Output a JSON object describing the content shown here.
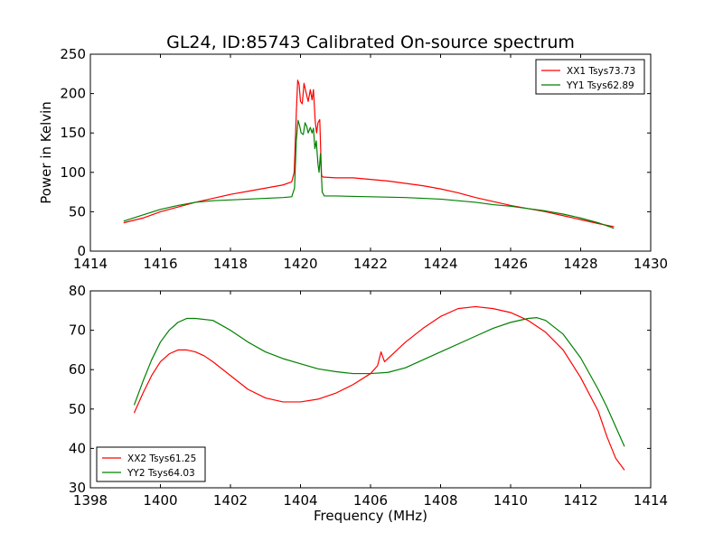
{
  "figure": {
    "title": "GL24, ID:85743 Calibrated On-source spectrum"
  },
  "chart_data": [
    {
      "type": "line",
      "title": "GL24, ID:85743 Calibrated On-source spectrum",
      "xlabel": "",
      "ylabel": "Power in Kelvin",
      "xlim": [
        1414,
        1430
      ],
      "ylim": [
        0,
        250
      ],
      "xticks": [
        1414,
        1416,
        1418,
        1420,
        1422,
        1424,
        1426,
        1428,
        1430
      ],
      "yticks": [
        0,
        50,
        100,
        150,
        200,
        250
      ],
      "legend": "top-right",
      "grid": false,
      "series": [
        {
          "name": "XX1 Tsys73.73",
          "color": "#ff0000",
          "points": [
            [
              1414.95,
              36
            ],
            [
              1415.5,
              42
            ],
            [
              1416,
              50
            ],
            [
              1416.5,
              56
            ],
            [
              1417,
              62
            ],
            [
              1417.5,
              67
            ],
            [
              1418,
              72
            ],
            [
              1418.5,
              76
            ],
            [
              1419,
              80
            ],
            [
              1419.5,
              84
            ],
            [
              1419.75,
              88
            ],
            [
              1419.82,
              100
            ],
            [
              1419.88,
              175
            ],
            [
              1419.92,
              217
            ],
            [
              1419.96,
              212
            ],
            [
              1420.0,
              190
            ],
            [
              1420.05,
              187
            ],
            [
              1420.1,
              213
            ],
            [
              1420.16,
              201
            ],
            [
              1420.22,
              190
            ],
            [
              1420.28,
              205
            ],
            [
              1420.33,
              192
            ],
            [
              1420.37,
              205
            ],
            [
              1420.42,
              165
            ],
            [
              1420.46,
              150
            ],
            [
              1420.5,
              163
            ],
            [
              1420.55,
              167
            ],
            [
              1420.6,
              96
            ],
            [
              1420.65,
              94
            ],
            [
              1421,
              93
            ],
            [
              1421.5,
              93
            ],
            [
              1422,
              91
            ],
            [
              1422.5,
              89
            ],
            [
              1423,
              86
            ],
            [
              1423.5,
              83
            ],
            [
              1424,
              79
            ],
            [
              1424.5,
              74
            ],
            [
              1425,
              68
            ],
            [
              1425.5,
              63
            ],
            [
              1426,
              58
            ],
            [
              1426.5,
              54
            ],
            [
              1427,
              50
            ],
            [
              1427.5,
              45
            ],
            [
              1428,
              40
            ],
            [
              1428.5,
              35
            ],
            [
              1428.95,
              31
            ]
          ]
        },
        {
          "name": "YY1 Tsys62.89",
          "color": "#008000",
          "points": [
            [
              1414.95,
              38
            ],
            [
              1415.5,
              46
            ],
            [
              1416,
              53
            ],
            [
              1416.5,
              58
            ],
            [
              1417,
              62
            ],
            [
              1417.5,
              64
            ],
            [
              1418,
              65
            ],
            [
              1418.5,
              66
            ],
            [
              1419,
              67
            ],
            [
              1419.5,
              68
            ],
            [
              1419.75,
              69
            ],
            [
              1419.83,
              80
            ],
            [
              1419.88,
              140
            ],
            [
              1419.93,
              166
            ],
            [
              1419.97,
              160
            ],
            [
              1420.02,
              150
            ],
            [
              1420.08,
              148
            ],
            [
              1420.13,
              163
            ],
            [
              1420.18,
              158
            ],
            [
              1420.22,
              150
            ],
            [
              1420.28,
              157
            ],
            [
              1420.33,
              150
            ],
            [
              1420.37,
              156
            ],
            [
              1420.41,
              130
            ],
            [
              1420.45,
              140
            ],
            [
              1420.5,
              110
            ],
            [
              1420.53,
              100
            ],
            [
              1420.57,
              124
            ],
            [
              1420.62,
              75
            ],
            [
              1420.68,
              70
            ],
            [
              1421,
              70
            ],
            [
              1422,
              69
            ],
            [
              1423,
              68
            ],
            [
              1424,
              66
            ],
            [
              1424.5,
              64
            ],
            [
              1425,
              62
            ],
            [
              1425.5,
              59
            ],
            [
              1426,
              57
            ],
            [
              1426.5,
              54
            ],
            [
              1427,
              51
            ],
            [
              1427.5,
              47
            ],
            [
              1428,
              42
            ],
            [
              1428.5,
              36
            ],
            [
              1428.95,
              29
            ]
          ]
        }
      ]
    },
    {
      "type": "line",
      "title": "",
      "xlabel": "Frequency (MHz)",
      "ylabel": "",
      "xlim": [
        1398,
        1414
      ],
      "ylim": [
        30,
        80
      ],
      "xticks": [
        1398,
        1400,
        1402,
        1404,
        1406,
        1408,
        1410,
        1412,
        1414
      ],
      "yticks": [
        30,
        40,
        50,
        60,
        70,
        80
      ],
      "legend": "bottom-left",
      "grid": false,
      "series": [
        {
          "name": "XX2 Tsys61.25",
          "color": "#ff0000",
          "points": [
            [
              1399.25,
              49
            ],
            [
              1399.5,
              54
            ],
            [
              1399.75,
              58.5
            ],
            [
              1400,
              62
            ],
            [
              1400.25,
              64
            ],
            [
              1400.5,
              65
            ],
            [
              1400.75,
              65
            ],
            [
              1401,
              64.5
            ],
            [
              1401.25,
              63.5
            ],
            [
              1401.5,
              62
            ],
            [
              1402,
              58.5
            ],
            [
              1402.5,
              55
            ],
            [
              1403,
              52.8
            ],
            [
              1403.5,
              51.8
            ],
            [
              1404,
              51.8
            ],
            [
              1404.5,
              52.5
            ],
            [
              1405,
              54
            ],
            [
              1405.5,
              56.2
            ],
            [
              1406,
              59
            ],
            [
              1406.2,
              61
            ],
            [
              1406.3,
              64.5
            ],
            [
              1406.4,
              62
            ],
            [
              1406.7,
              64.5
            ],
            [
              1407,
              67
            ],
            [
              1407.5,
              70.5
            ],
            [
              1408,
              73.5
            ],
            [
              1408.5,
              75.5
            ],
            [
              1409,
              76
            ],
            [
              1409.5,
              75.5
            ],
            [
              1410,
              74.5
            ],
            [
              1410.5,
              72.5
            ],
            [
              1411,
              69.5
            ],
            [
              1411.5,
              65
            ],
            [
              1412,
              58
            ],
            [
              1412.5,
              49.5
            ],
            [
              1412.75,
              43
            ],
            [
              1413,
              37.5
            ],
            [
              1413.25,
              34.5
            ]
          ]
        },
        {
          "name": "YY2 Tsys64.03",
          "color": "#008000",
          "points": [
            [
              1399.25,
              51
            ],
            [
              1399.5,
              57
            ],
            [
              1399.75,
              62.5
            ],
            [
              1400,
              67
            ],
            [
              1400.25,
              70
            ],
            [
              1400.5,
              72
            ],
            [
              1400.75,
              73
            ],
            [
              1401,
              73
            ],
            [
              1401.5,
              72.5
            ],
            [
              1402,
              70
            ],
            [
              1402.5,
              67
            ],
            [
              1403,
              64.5
            ],
            [
              1403.5,
              62.8
            ],
            [
              1404,
              61.5
            ],
            [
              1404.5,
              60.2
            ],
            [
              1405,
              59.5
            ],
            [
              1405.5,
              59
            ],
            [
              1406,
              59
            ],
            [
              1406.5,
              59.3
            ],
            [
              1407,
              60.5
            ],
            [
              1407.5,
              62.5
            ],
            [
              1408,
              64.5
            ],
            [
              1408.5,
              66.5
            ],
            [
              1409,
              68.5
            ],
            [
              1409.5,
              70.5
            ],
            [
              1410,
              72
            ],
            [
              1410.5,
              73
            ],
            [
              1410.75,
              73.2
            ],
            [
              1411,
              72.5
            ],
            [
              1411.5,
              69
            ],
            [
              1412,
              63
            ],
            [
              1412.5,
              55
            ],
            [
              1412.75,
              50.5
            ],
            [
              1413,
              45.5
            ],
            [
              1413.25,
              40.5
            ]
          ]
        }
      ]
    }
  ]
}
